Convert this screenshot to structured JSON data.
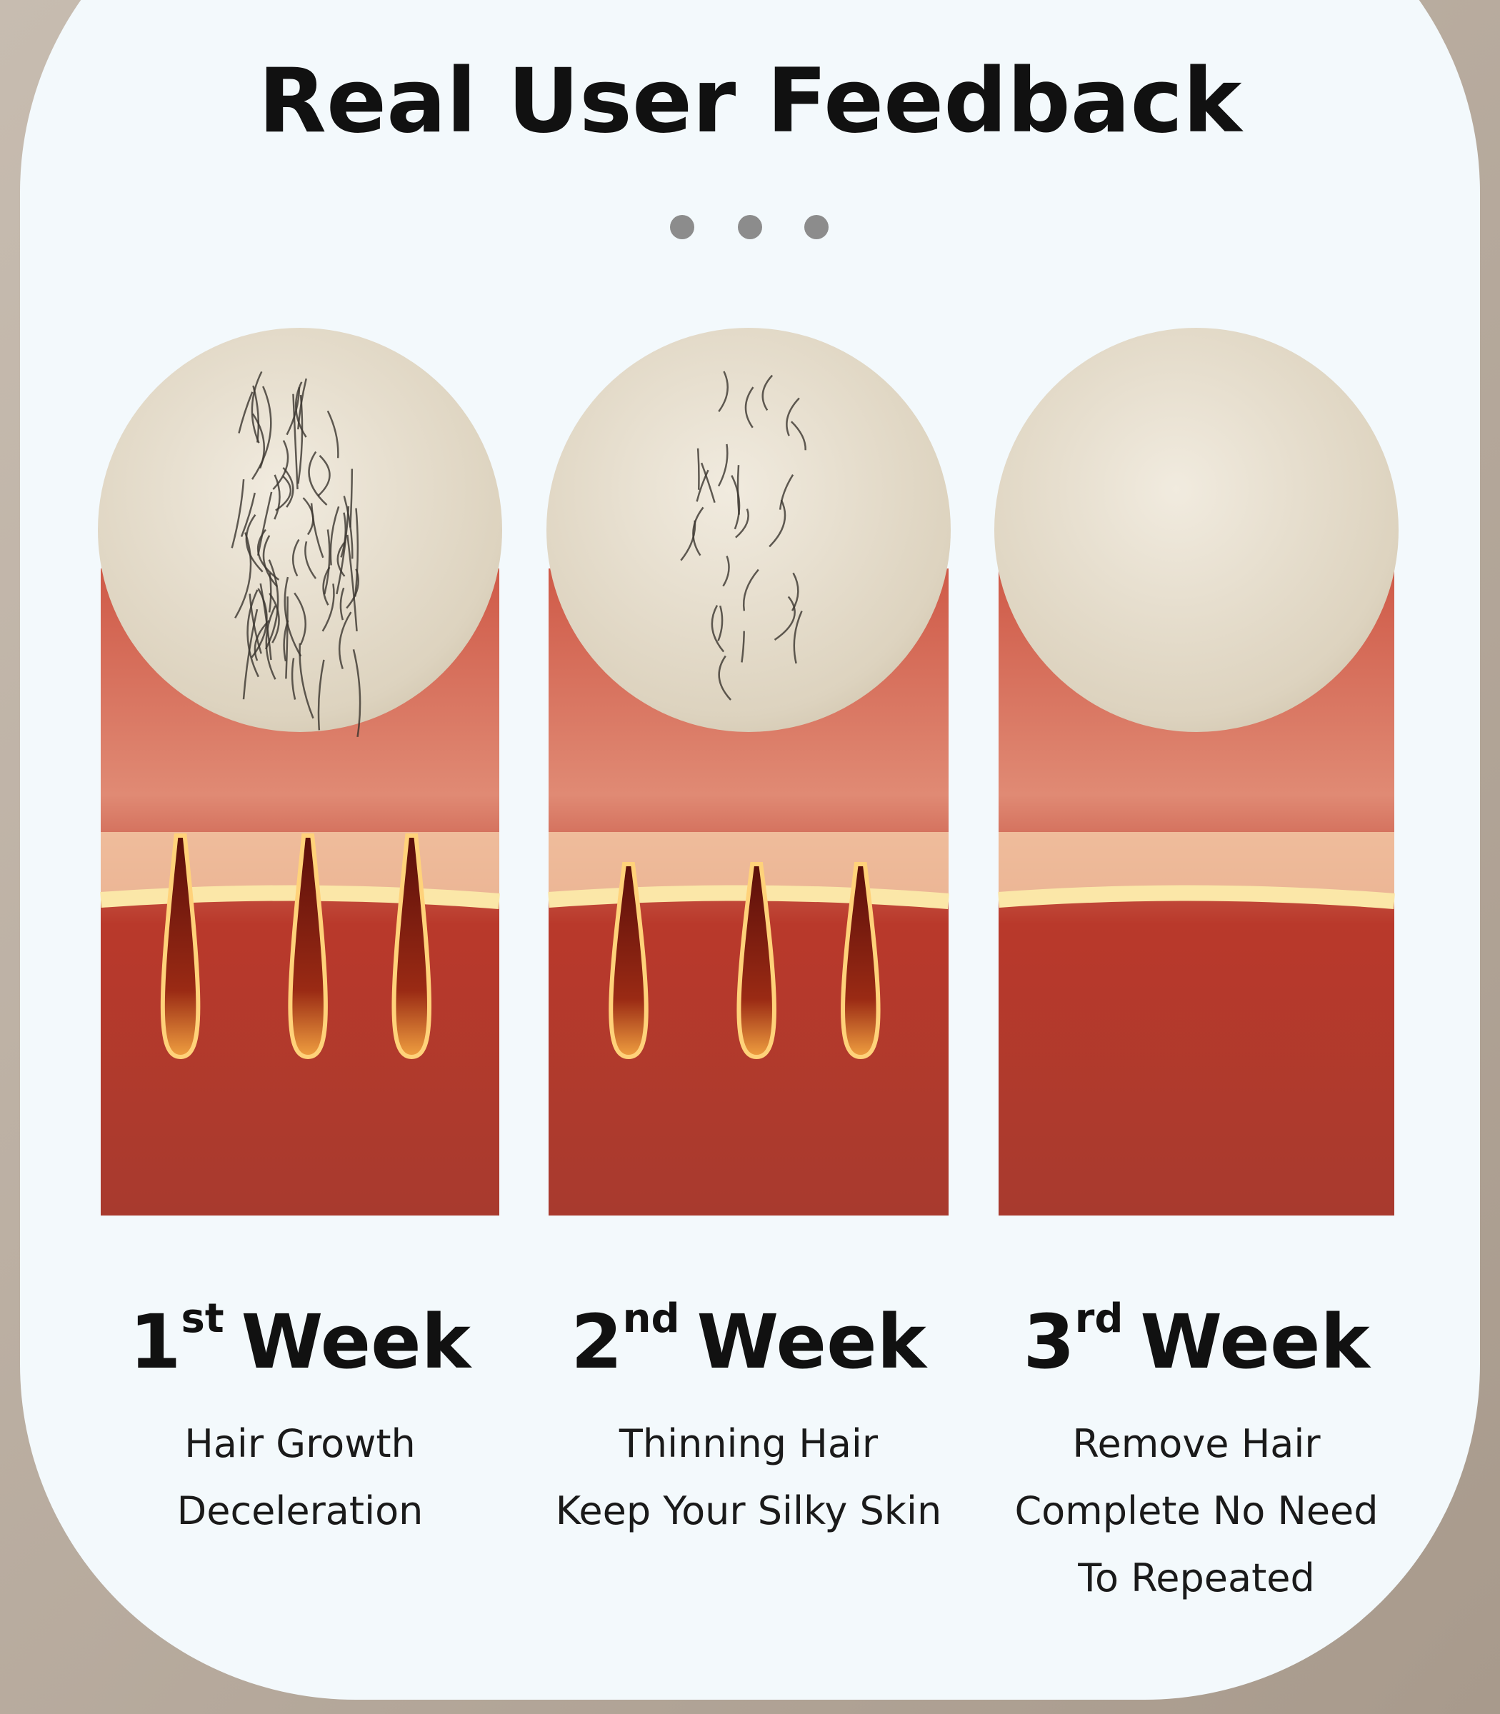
{
  "title": "Real User Feedback",
  "columns": [
    {
      "number": "1",
      "suffix": "st",
      "word": "Week",
      "lines": [
        "Hair Growth",
        "Deceleration"
      ]
    },
    {
      "number": "2",
      "suffix": "nd",
      "word": "Week",
      "lines": [
        "Thinning Hair",
        "Keep Your Silky Skin"
      ]
    },
    {
      "number": "3",
      "suffix": "rd",
      "word": "Week",
      "lines": [
        "Remove Hair",
        "Complete No Need",
        "To Repeated"
      ]
    }
  ]
}
